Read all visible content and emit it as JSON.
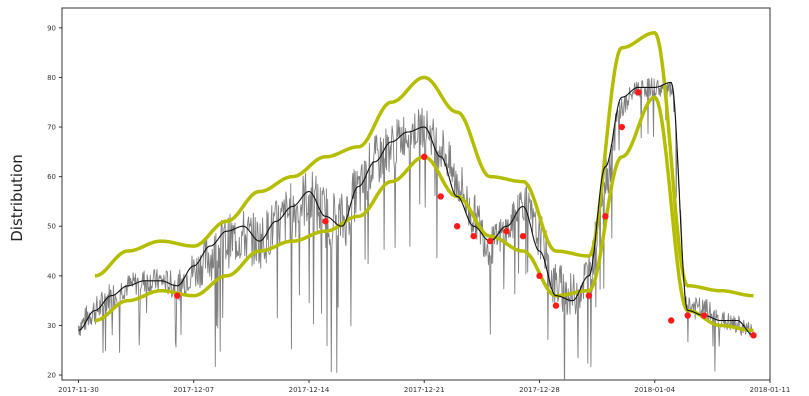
{
  "chart_data": {
    "type": "line",
    "title": "",
    "xlabel": "",
    "ylabel": "Distribution",
    "xlim": [
      "2017-11-29",
      "2018-01-11"
    ],
    "ylim": [
      19,
      94
    ],
    "x_ticks": [
      "2017-11-30",
      "2017-12-07",
      "2017-12-14",
      "2017-12-21",
      "2017-12-28",
      "2018-01-04",
      "2018-01-11"
    ],
    "y_ticks": [
      20,
      30,
      40,
      50,
      60,
      70,
      80,
      90
    ],
    "grid": false,
    "legend": "none",
    "colors": {
      "raw": "#7f7f7f",
      "trend": "#111111",
      "bands": "#b5bd00",
      "anomaly": "#ff1a1a"
    },
    "series": [
      {
        "role": "raw",
        "kind": "noisy-line",
        "x": [
          "2017-11-30",
          "2017-12-01",
          "2017-12-02",
          "2017-12-03",
          "2017-12-04",
          "2017-12-05",
          "2017-12-06",
          "2017-12-07",
          "2017-12-08",
          "2017-12-09",
          "2017-12-10",
          "2017-12-11",
          "2017-12-12",
          "2017-12-13",
          "2017-12-14",
          "2017-12-15",
          "2017-12-16",
          "2017-12-17",
          "2017-12-18",
          "2017-12-19",
          "2017-12-20",
          "2017-12-21",
          "2017-12-22",
          "2017-12-23",
          "2017-12-24",
          "2017-12-25",
          "2017-12-26",
          "2017-12-27",
          "2017-12-28",
          "2017-12-29",
          "2017-12-30",
          "2017-12-31",
          "2018-01-01",
          "2018-01-02",
          "2018-01-03",
          "2018-01-04",
          "2018-01-05",
          "2018-01-06",
          "2018-01-07",
          "2018-01-08",
          "2018-01-09",
          "2018-01-10"
        ],
        "values": [
          30,
          33,
          36,
          38,
          39,
          39,
          38,
          41,
          44,
          47,
          48,
          47,
          50,
          53,
          56,
          52,
          51,
          57,
          63,
          66,
          69,
          70,
          66,
          59,
          52,
          46,
          49,
          55,
          48,
          38,
          36,
          40,
          60,
          74,
          78,
          78,
          77,
          34,
          33,
          31,
          30,
          29
        ],
        "spread": [
          5,
          6,
          6,
          5,
          5,
          5,
          6,
          8,
          10,
          11,
          11,
          11,
          11,
          12,
          12,
          13,
          12,
          11,
          11,
          10,
          9,
          8,
          9,
          10,
          9,
          8,
          8,
          8,
          9,
          10,
          9,
          10,
          10,
          5,
          4,
          4,
          5,
          5,
          5,
          4,
          4,
          3
        ]
      },
      {
        "role": "trend",
        "kind": "line",
        "x": [
          "2017-11-30",
          "2017-12-01",
          "2017-12-02",
          "2017-12-03",
          "2017-12-04",
          "2017-12-05",
          "2017-12-06",
          "2017-12-07",
          "2017-12-08",
          "2017-12-09",
          "2017-12-10",
          "2017-12-11",
          "2017-12-12",
          "2017-12-13",
          "2017-12-14",
          "2017-12-15",
          "2017-12-16",
          "2017-12-17",
          "2017-12-18",
          "2017-12-19",
          "2017-12-20",
          "2017-12-21",
          "2017-12-22",
          "2017-12-23",
          "2017-12-24",
          "2017-12-25",
          "2017-12-26",
          "2017-12-27",
          "2017-12-28",
          "2017-12-29",
          "2017-12-30",
          "2017-12-31",
          "2018-01-01",
          "2018-01-02",
          "2018-01-03",
          "2018-01-04",
          "2018-01-05",
          "2018-01-06",
          "2018-01-07",
          "2018-01-08",
          "2018-01-09",
          "2018-01-10"
        ],
        "values": [
          29,
          33,
          36,
          38,
          39,
          39,
          38,
          42,
          46,
          49,
          50,
          47,
          51,
          54,
          57,
          52,
          50,
          58,
          63,
          67,
          69,
          70,
          64,
          56,
          50,
          47,
          50,
          54,
          45,
          36,
          35,
          40,
          62,
          76,
          78,
          78,
          79,
          33,
          32,
          31,
          31,
          28
        ]
      },
      {
        "role": "upper-band",
        "kind": "line",
        "x": [
          "2017-12-01",
          "2017-12-03",
          "2017-12-05",
          "2017-12-07",
          "2017-12-09",
          "2017-12-11",
          "2017-12-13",
          "2017-12-15",
          "2017-12-17",
          "2017-12-19",
          "2017-12-21",
          "2017-12-23",
          "2017-12-25",
          "2017-12-27",
          "2017-12-29",
          "2017-12-31",
          "2018-01-02",
          "2018-01-04",
          "2018-01-06",
          "2018-01-08",
          "2018-01-10"
        ],
        "values": [
          40,
          45,
          47,
          46,
          51,
          57,
          60,
          64,
          66,
          75,
          80,
          73,
          60,
          59,
          45,
          44,
          86,
          89,
          38,
          37,
          36
        ]
      },
      {
        "role": "lower-band",
        "kind": "line",
        "x": [
          "2017-12-01",
          "2017-12-03",
          "2017-12-05",
          "2017-12-07",
          "2017-12-09",
          "2017-12-11",
          "2017-12-13",
          "2017-12-15",
          "2017-12-17",
          "2017-12-19",
          "2017-12-21",
          "2017-12-23",
          "2017-12-25",
          "2017-12-27",
          "2017-12-29",
          "2017-12-31",
          "2018-01-02",
          "2018-01-04",
          "2018-01-06",
          "2018-01-08",
          "2018-01-10"
        ],
        "values": [
          31,
          35,
          37,
          36,
          40,
          45,
          47,
          49,
          52,
          59,
          64,
          56,
          48,
          45,
          36,
          37,
          64,
          76,
          33,
          30,
          29
        ]
      },
      {
        "role": "anomalies",
        "kind": "points",
        "x": [
          "2017-12-06",
          "2017-12-15",
          "2017-12-21",
          "2017-12-22",
          "2017-12-23",
          "2017-12-24",
          "2017-12-25",
          "2017-12-26",
          "2017-12-27",
          "2017-12-28",
          "2017-12-29",
          "2017-12-31",
          "2018-01-01",
          "2018-01-02",
          "2018-01-03",
          "2018-01-05",
          "2018-01-06",
          "2018-01-07",
          "2018-01-10"
        ],
        "values": [
          36,
          51,
          64,
          56,
          50,
          48,
          47,
          49,
          48,
          40,
          34,
          36,
          52,
          70,
          77,
          31,
          32,
          32,
          28
        ]
      }
    ]
  }
}
